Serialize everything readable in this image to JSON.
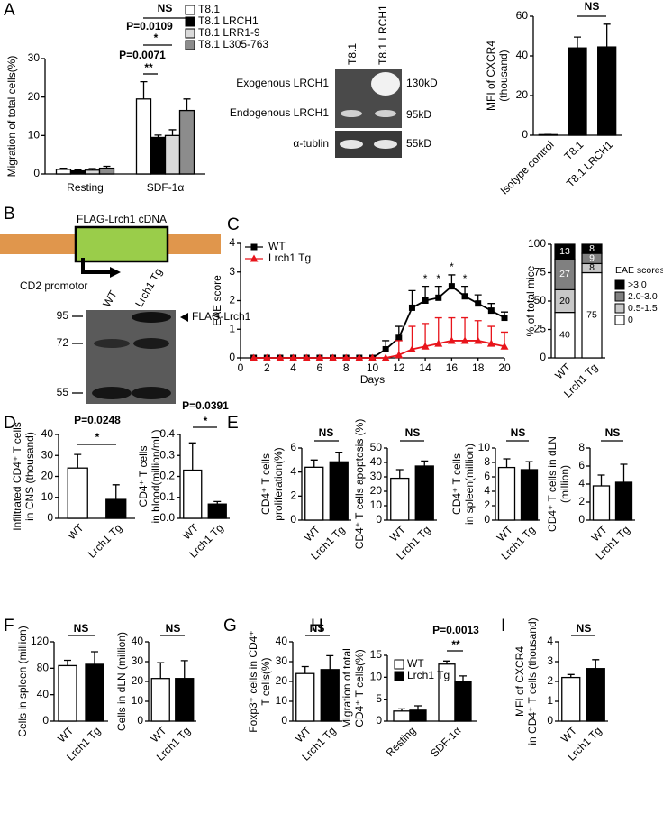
{
  "panel_labels": [
    "A",
    "B",
    "C",
    "D",
    "E",
    "F",
    "G",
    "H",
    "I"
  ],
  "blot_a": {
    "lanes": [
      "T8.1",
      "T8.1 LRCH1"
    ],
    "rows": [
      "Exogenous LRCH1",
      "Endogenous LRCH1",
      "α-tublin"
    ],
    "sizes": [
      "130kD",
      "95kD",
      "55kD"
    ]
  },
  "diagram_b": {
    "insert": "FLAG-Lrch1 cDNA",
    "promoter": "CD2 promotor"
  },
  "blot_b": {
    "lanes": [
      "WT",
      "Lrch1 Tg"
    ],
    "markers": [
      "95",
      "72",
      "55"
    ],
    "band": "FLAG-Lrch1"
  },
  "chart_data": [
    {
      "type": "bar",
      "ylabel": [
        "Migration of total cells(%)"
      ],
      "categories": [
        "Resting",
        "SDF-1α"
      ],
      "series": [
        {
          "name": "T8.1",
          "color": "#ffffff",
          "values": [
            1.2,
            19.5
          ],
          "errors": [
            0.3,
            4.5
          ]
        },
        {
          "name": "T8.1 LRCH1",
          "color": "#000000",
          "values": [
            0.8,
            9.5
          ],
          "errors": [
            0.3,
            0.6
          ]
        },
        {
          "name": "T8.1 LRR1-9",
          "color": "#d9d9d9",
          "values": [
            1.0,
            10
          ],
          "errors": [
            0.4,
            1.5
          ]
        },
        {
          "name": "T8.1 L305-763",
          "color": "#8c8c8c",
          "values": [
            1.5,
            16.5
          ],
          "errors": [
            0.5,
            3
          ]
        }
      ],
      "ylim": [
        0,
        30
      ],
      "yticks": [
        0,
        10,
        20,
        30
      ],
      "annotations": [
        "NS",
        "P=0.0109",
        "*",
        "P=0.0071",
        "**"
      ]
    },
    {
      "type": "bar",
      "ylabel": [
        "MFI of CXCR4",
        "(thousand)"
      ],
      "categories": [
        "Isotype control",
        "T8.1",
        "T8.1 LRCH1"
      ],
      "values": [
        0.3,
        44,
        44.5
      ],
      "errors": [
        0.1,
        5.5,
        11.5
      ],
      "colors": [
        "#000000",
        "#000000",
        "#000000"
      ],
      "ylim": [
        0,
        60
      ],
      "yticks": [
        0,
        20,
        40,
        60
      ],
      "annotations": [
        "NS"
      ]
    },
    {
      "type": "line",
      "ylabel": [
        "EAE score"
      ],
      "xlabel": "Days",
      "x": [
        1,
        2,
        3,
        4,
        5,
        6,
        7,
        8,
        9,
        10,
        11,
        12,
        13,
        14,
        15,
        16,
        17,
        18,
        19,
        20
      ],
      "series": [
        {
          "name": "WT",
          "color": "#000000",
          "marker": "square",
          "values": [
            0,
            0,
            0,
            0,
            0,
            0,
            0,
            0,
            0,
            0,
            0.3,
            0.7,
            1.75,
            2.0,
            2.1,
            2.5,
            2.15,
            1.9,
            1.65,
            1.4
          ],
          "errors": [
            null,
            null,
            null,
            null,
            null,
            null,
            null,
            null,
            null,
            null,
            0.3,
            0.4,
            0.6,
            0.5,
            0.4,
            0.4,
            0.35,
            0.3,
            0.25,
            0.2
          ]
        },
        {
          "name": "Lrch1 Tg",
          "color": "#e8141b",
          "marker": "triangle",
          "values": [
            0,
            0,
            0,
            0,
            0,
            0,
            0,
            0,
            0,
            0,
            0,
            0.1,
            0.3,
            0.4,
            0.5,
            0.6,
            0.6,
            0.6,
            0.5,
            0.4
          ],
          "errors": [
            null,
            null,
            null,
            null,
            null,
            null,
            null,
            null,
            null,
            null,
            null,
            0.5,
            0.8,
            0.8,
            0.9,
            0.8,
            0.8,
            0.7,
            0.6,
            0.5
          ]
        }
      ],
      "xlim": [
        0,
        20
      ],
      "xticks": [
        0,
        2,
        4,
        6,
        8,
        10,
        12,
        14,
        16,
        18,
        20
      ],
      "ylim": [
        0,
        4
      ],
      "yticks": [
        0,
        1,
        2,
        3,
        4
      ],
      "annotations": [
        "*",
        "*",
        "*",
        "*"
      ]
    },
    {
      "type": "stacked_bar",
      "ylabel": [
        "% of total mice"
      ],
      "categories": [
        "WT",
        "Lrch1 Tg"
      ],
      "legend_title": "EAE scores",
      "series": [
        {
          "name": ">3.0",
          "color": "#000000",
          "values": [
            13,
            8
          ]
        },
        {
          "name": "2.0-3.0",
          "color": "#808080",
          "values": [
            27,
            9
          ]
        },
        {
          "name": "0.5-1.5",
          "color": "#c8c8c8",
          "values": [
            20,
            8
          ]
        },
        {
          "name": "0",
          "color": "#ffffff",
          "values": [
            40,
            75
          ]
        }
      ],
      "ylim": [
        0,
        100
      ],
      "yticks": [
        0,
        25,
        50,
        75,
        100
      ]
    },
    {
      "type": "bar",
      "ylabel": [
        "Infiltrated CD4⁺ T cells",
        "in CNS  (thousand)"
      ],
      "categories": [
        "WT",
        "Lrch1 Tg"
      ],
      "values": [
        24,
        9
      ],
      "errors": [
        6.5,
        7
      ],
      "colors": [
        "#ffffff",
        "#000000"
      ],
      "ylim": [
        0,
        40
      ],
      "yticks": [
        0,
        10,
        20,
        30,
        40
      ],
      "annotations": [
        "P=0.0248",
        "*"
      ]
    },
    {
      "type": "bar",
      "ylabel": [
        "CD4⁺ T cells",
        "in blood(million/mL)"
      ],
      "categories": [
        "WT",
        "Lrch1 Tg"
      ],
      "values": [
        0.23,
        0.068
      ],
      "errors": [
        0.13,
        0.012
      ],
      "colors": [
        "#ffffff",
        "#000000"
      ],
      "ylim": [
        0,
        0.4
      ],
      "yticks": [
        {
          "value": 0,
          "label": "0.0"
        },
        0.1,
        0.2,
        0.3,
        0.4
      ],
      "annotations": [
        "P=0.0391",
        "*"
      ]
    },
    {
      "type": "bar",
      "ylabel": [
        "CD4⁺ T cells",
        "proliferation(%)"
      ],
      "categories": [
        "WT",
        "Lrch1 Tg"
      ],
      "values": [
        4.4,
        4.85
      ],
      "errors": [
        0.6,
        0.8
      ],
      "colors": [
        "#ffffff",
        "#000000"
      ],
      "ylim": [
        0,
        6
      ],
      "yticks": [
        0,
        2,
        4,
        6
      ],
      "annotations": [
        "NS"
      ]
    },
    {
      "type": "bar",
      "ylabel": [
        "CD4⁺ T cells apoptosis (%)"
      ],
      "categories": [
        "WT",
        "Lrch1 Tg"
      ],
      "values": [
        29,
        37.5
      ],
      "errors": [
        6,
        3.5
      ],
      "colors": [
        "#ffffff",
        "#000000"
      ],
      "ylim": [
        0,
        50
      ],
      "yticks": [
        0,
        10,
        20,
        30,
        40,
        50
      ],
      "annotations": [
        "NS"
      ]
    },
    {
      "type": "bar",
      "ylabel": [
        "CD4⁺ T cells",
        "in spleen(million)"
      ],
      "categories": [
        "WT",
        "Lrch1 Tg"
      ],
      "values": [
        7.3,
        7.0
      ],
      "errors": [
        1.2,
        1.1
      ],
      "colors": [
        "#ffffff",
        "#000000"
      ],
      "ylim": [
        0,
        10
      ],
      "yticks": [
        0,
        2,
        4,
        6,
        8,
        10
      ],
      "annotations": [
        "NS"
      ]
    },
    {
      "type": "bar",
      "ylabel": [
        "CD4⁺ T cells in dLN",
        "(million)"
      ],
      "categories": [
        "WT",
        "Lrch1 Tg"
      ],
      "values": [
        3.8,
        4.2
      ],
      "errors": [
        1.2,
        2.0
      ],
      "colors": [
        "#ffffff",
        "#000000"
      ],
      "ylim": [
        0,
        8
      ],
      "yticks": [
        0,
        2,
        4,
        6,
        8
      ],
      "annotations": [
        "NS"
      ]
    },
    {
      "type": "bar",
      "ylabel": [
        "Cells in spleen (million)"
      ],
      "categories": [
        "WT",
        "Lrch1 Tg"
      ],
      "values": [
        84,
        86
      ],
      "errors": [
        8,
        19
      ],
      "colors": [
        "#ffffff",
        "#000000"
      ],
      "ylim": [
        0,
        120
      ],
      "yticks": [
        0,
        40,
        80,
        120
      ],
      "annotations": [
        "NS"
      ]
    },
    {
      "type": "bar",
      "ylabel": [
        "Cells in dLN (million)"
      ],
      "categories": [
        "WT",
        "Lrch1 Tg"
      ],
      "values": [
        21.5,
        21.5
      ],
      "errors": [
        8,
        9
      ],
      "colors": [
        "#ffffff",
        "#000000"
      ],
      "ylim": [
        0,
        40
      ],
      "yticks": [
        0,
        10,
        20,
        30,
        40
      ],
      "annotations": [
        "NS"
      ]
    },
    {
      "type": "bar",
      "ylabel": [
        "Foxp3⁺ cells in CD4⁺",
        "T cells(%)"
      ],
      "categories": [
        "WT",
        "Lrch1 Tg"
      ],
      "values": [
        24,
        26
      ],
      "errors": [
        3.5,
        7
      ],
      "colors": [
        "#ffffff",
        "#000000"
      ],
      "ylim": [
        0,
        40
      ],
      "yticks": [
        0,
        10,
        20,
        30,
        40
      ],
      "annotations": [
        "NS"
      ]
    },
    {
      "type": "bar",
      "ylabel": [
        "Migration of total",
        "CD4⁺ T cells(%)"
      ],
      "categories": [
        "Resting",
        "SDF-1α"
      ],
      "series": [
        {
          "name": "WT",
          "color": "#ffffff",
          "values": [
            2.3,
            13
          ],
          "errors": [
            0.5,
            0.7
          ]
        },
        {
          "name": "Lrch1 Tg",
          "color": "#000000",
          "values": [
            2.5,
            9
          ],
          "errors": [
            1.0,
            1.3
          ]
        }
      ],
      "ylim": [
        0,
        15
      ],
      "yticks": [
        0,
        5,
        10,
        15
      ],
      "annotations": [
        "P=0.0013",
        "**"
      ]
    },
    {
      "type": "bar",
      "ylabel": [
        "MFI of CXCR4",
        "in CD4⁺ T cells (thousand)"
      ],
      "categories": [
        "WT",
        "Lrch1 Tg"
      ],
      "values": [
        2.2,
        2.65
      ],
      "errors": [
        0.15,
        0.45
      ],
      "colors": [
        "#ffffff",
        "#000000"
      ],
      "ylim": [
        0,
        4
      ],
      "yticks": [
        0,
        1,
        2,
        3,
        4
      ],
      "annotations": [
        "NS"
      ]
    }
  ]
}
